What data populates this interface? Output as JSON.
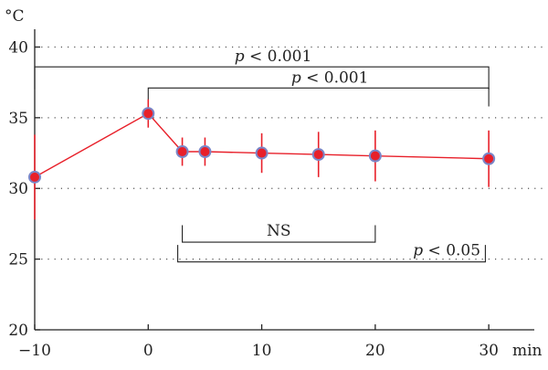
{
  "colors": {
    "series": "#e8202a",
    "marker_fill": "#e8202a",
    "marker_stroke": "#7a86c8",
    "axis": "#222222",
    "grid": "#555555"
  },
  "chart_data": {
    "type": "line",
    "title": "",
    "xlabel": "min",
    "ylabel": "°C",
    "xlim": [
      -10,
      32
    ],
    "ylim": [
      20,
      41
    ],
    "grid": {
      "y": true,
      "x": false,
      "style": "dotted"
    },
    "x_ticks": [
      -10,
      0,
      10,
      20,
      30
    ],
    "x_tick_labels": [
      "−10",
      "0",
      "10",
      "20",
      "30"
    ],
    "y_ticks": [
      20,
      25,
      30,
      35,
      40
    ],
    "y_tick_labels": [
      "20",
      "25",
      "30",
      "35",
      "40"
    ],
    "series": [
      {
        "x": [
          -10,
          0,
          3,
          5,
          10,
          15,
          20,
          30
        ],
        "y": [
          30.8,
          35.3,
          32.6,
          32.6,
          32.5,
          32.4,
          32.3,
          32.1
        ],
        "err_low": [
          27.8,
          34.3,
          31.6,
          31.6,
          31.1,
          30.8,
          30.5,
          30.1
        ],
        "err_high": [
          33.8,
          36.3,
          33.6,
          33.6,
          33.9,
          34.0,
          34.1,
          34.1
        ]
      }
    ],
    "annotations": [
      {
        "label_italic": "p",
        "label_rest": " < 0.001",
        "x_start": -10,
        "x_end": 30,
        "y": 38.6,
        "tick_to_y": 37.0,
        "drop_start": true,
        "label_x": 11
      },
      {
        "label_italic": "p",
        "label_rest": " < 0.001",
        "x_start": 0,
        "x_end": 30,
        "y": 37.1,
        "tick_to_y": 35.8,
        "drop_start": true,
        "label_x": 16
      },
      {
        "label_italic": "",
        "label_rest": "NS",
        "x_start": 3,
        "x_end": 20,
        "y": 26.2,
        "tick_to_y": 27.4,
        "drop_start": true,
        "label_x": 11.5
      },
      {
        "label_italic": "p",
        "label_rest": " < 0.05",
        "x_start": 2.6,
        "x_end": 29.7,
        "y": 24.8,
        "tick_to_y": 26.0,
        "drop_start": true,
        "label_x": 26.3
      }
    ]
  }
}
